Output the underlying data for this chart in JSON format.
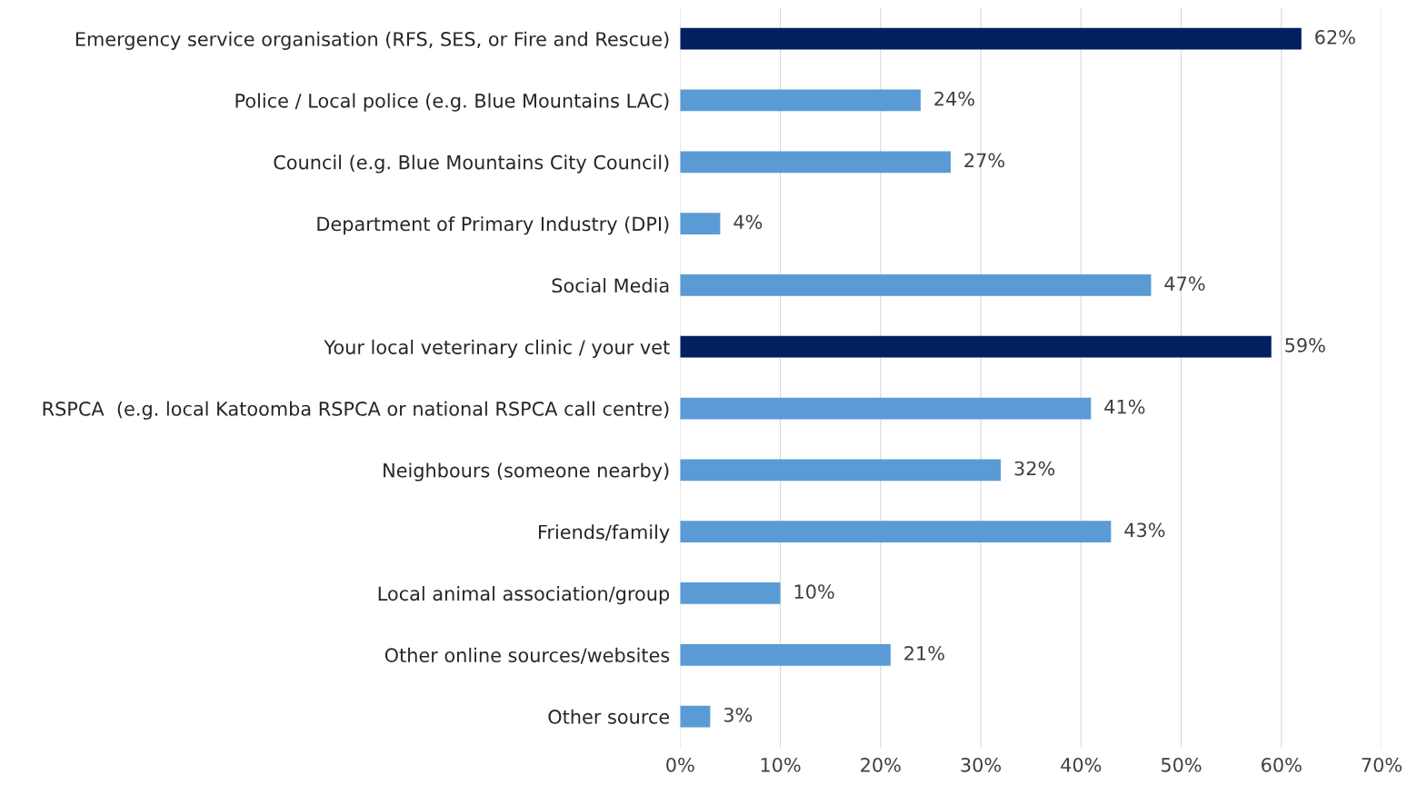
{
  "chart_data": {
    "type": "bar",
    "orientation": "horizontal",
    "categories": [
      "Emergency service organisation (RFS, SES, or Fire and Rescue)",
      "Police / Local police (e.g. Blue Mountains LAC)",
      "Council (e.g. Blue Mountains City Council)",
      "Department of Primary Industry (DPI)",
      "Social Media",
      "Your local veterinary clinic / your vet",
      "RSPCA  (e.g. local Katoomba RSPCA or national RSPCA call centre)",
      "Neighbours (someone nearby)",
      "Friends/family",
      "Local animal association/group",
      "Other online sources/websites",
      "Other source"
    ],
    "values": [
      62,
      24,
      27,
      4,
      47,
      59,
      41,
      32,
      43,
      10,
      21,
      3
    ],
    "value_labels": [
      "62%",
      "24%",
      "27%",
      "4%",
      "47%",
      "59%",
      "41%",
      "32%",
      "43%",
      "10%",
      "21%",
      "3%"
    ],
    "colors": [
      "#002060",
      "#5b9bd5",
      "#5b9bd5",
      "#5b9bd5",
      "#5b9bd5",
      "#002060",
      "#5b9bd5",
      "#5b9bd5",
      "#5b9bd5",
      "#5b9bd5",
      "#5b9bd5",
      "#5b9bd5"
    ],
    "xlim": [
      0,
      70
    ],
    "xticks": [
      {
        "value": 0,
        "label": "0%"
      },
      {
        "value": 10,
        "label": "10%"
      },
      {
        "value": 20,
        "label": "20%"
      },
      {
        "value": 30,
        "label": "30%"
      },
      {
        "value": 40,
        "label": "40%"
      },
      {
        "value": 50,
        "label": "50%"
      },
      {
        "value": 60,
        "label": "60%"
      },
      {
        "value": 70,
        "label": "70%"
      }
    ],
    "grid": "x",
    "legend": false
  }
}
